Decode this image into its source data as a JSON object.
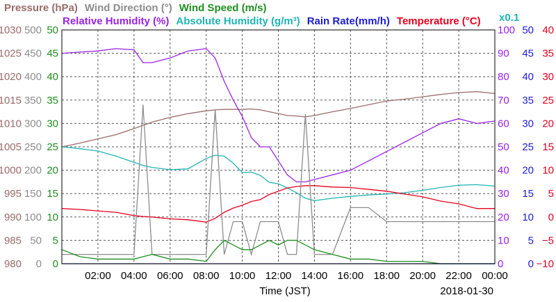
{
  "chart_data": {
    "type": "line",
    "date": "2018-01-30",
    "xlabel": "Time (JST)",
    "x_ticks": [
      "02:00",
      "04:00",
      "06:00",
      "08:00",
      "10:00",
      "12:00",
      "14:00",
      "16:00",
      "18:00",
      "20:00",
      "22:00",
      "00:00"
    ],
    "grid": true,
    "legend": [
      {
        "text": "Pressure (hPa)",
        "color": "#9b6b6b"
      },
      {
        "text": "Wind Direction (°)",
        "color": "#8c8c8c"
      },
      {
        "text": "Wind Speed (m/s)",
        "color": "#1f8f1f"
      },
      {
        "text": "Relative Humidity (%)",
        "color": "#9a22e6"
      },
      {
        "text": "Absolute Humidity (g/m³)",
        "color": "#1fb5b5"
      },
      {
        "text": "Rain Rate(mm/h)",
        "color": "#1c1cd6"
      },
      {
        "text": "Temperature (°C)",
        "color": "#e6001e"
      },
      {
        "text": "x0.1",
        "color": "#1fb5b5"
      }
    ],
    "axes": {
      "pressure": {
        "ticks": [
          "980",
          "985",
          "990",
          "995",
          "1000",
          "1005",
          "1010",
          "1015",
          "1020",
          "1025",
          "1030"
        ],
        "color": "#9b6b6b",
        "ylim": [
          980,
          1030
        ]
      },
      "wind_direction": {
        "ticks": [
          "0",
          "50",
          "100",
          "150",
          "200",
          "250",
          "300",
          "350",
          "400",
          "450",
          "500"
        ],
        "color": "#8c8c8c",
        "ylim": [
          0,
          500
        ]
      },
      "wind_speed": {
        "ticks": [
          "0",
          "5",
          "10",
          "15",
          "20",
          "25",
          "30",
          "35",
          "40",
          "45",
          "50"
        ],
        "color": "#1f8f1f",
        "ylim": [
          0,
          50
        ]
      },
      "relative_humidity": {
        "ticks": [
          "0",
          "10",
          "20",
          "30",
          "40",
          "50",
          "60",
          "70",
          "80",
          "90",
          "100"
        ],
        "color": "#9a22e6",
        "ylim": [
          0,
          100
        ]
      },
      "rain_rate": {
        "ticks": [
          "0",
          "5",
          "10",
          "15",
          "20",
          "25",
          "30",
          "35",
          "40",
          "45",
          "50"
        ],
        "color": "#1c1cd6",
        "ylim": [
          0,
          50
        ]
      },
      "temperature": {
        "ticks": [
          "−10",
          "−5",
          "0",
          "5",
          "10",
          "15",
          "20",
          "25",
          "30",
          "35",
          "40"
        ],
        "color": "#e6001e",
        "ylim": [
          -10,
          40
        ]
      }
    },
    "x_hours": [
      0,
      1,
      2,
      3,
      4,
      4.5,
      5,
      6,
      7,
      8,
      8.5,
      9,
      9.5,
      10,
      10.5,
      11,
      11.5,
      12,
      12.5,
      13,
      13.5,
      14,
      15,
      16,
      17,
      18,
      19,
      20,
      21,
      22,
      23,
      24
    ],
    "series": [
      {
        "name": "Pressure (hPa)",
        "axis": "pressure",
        "color": "#9b6b6b",
        "values": [
          1005.0,
          1005.8,
          1006.7,
          1007.6,
          1008.9,
          1009.6,
          1010.3,
          1011.3,
          1012.1,
          1012.7,
          1012.9,
          1013.0,
          1013.0,
          1013.0,
          1013.1,
          1012.9,
          1012.5,
          1012.1,
          1011.7,
          1011.6,
          1011.4,
          1011.7,
          1012.5,
          1013.2,
          1014.0,
          1014.8,
          1015.2,
          1015.7,
          1016.2,
          1016.6,
          1016.8,
          1016.4
        ]
      },
      {
        "name": "Relative Humidity (%)",
        "axis": "relative_humidity",
        "color": "#9a22e6",
        "values": [
          90,
          90.5,
          91,
          92,
          91.5,
          86,
          86,
          88,
          91,
          92,
          88,
          78,
          70,
          63,
          54,
          50,
          50,
          44,
          38,
          35,
          35,
          36,
          38,
          40,
          44,
          48,
          52,
          56,
          60,
          62,
          60,
          61
        ]
      },
      {
        "name": "Absolute Humidity (g/m³)",
        "axis": "wind_speed",
        "color": "#1fb5b5",
        "values": [
          25.0,
          24.6,
          24.1,
          23.0,
          21.7,
          21.0,
          20.6,
          20.1,
          20.3,
          22.5,
          23.2,
          23.0,
          21.5,
          19.5,
          19.6,
          18.9,
          17.4,
          17.1,
          16.2,
          15.2,
          14.0,
          13.5,
          14.0,
          14.4,
          14.7,
          14.9,
          15.2,
          15.7,
          16.3,
          16.8,
          16.9,
          16.6
        ]
      },
      {
        "name": "Temperature (°C)",
        "axis": "temperature",
        "color": "#e6001e",
        "values": [
          1.8,
          1.6,
          1.3,
          1.0,
          0.3,
          0.1,
          0.0,
          -0.4,
          -0.6,
          -1.1,
          -0.3,
          1.0,
          1.9,
          2.5,
          3.3,
          3.7,
          4.8,
          5.5,
          6.2,
          6.5,
          6.7,
          6.7,
          6.4,
          6.3,
          5.9,
          5.5,
          4.9,
          4.3,
          3.4,
          2.8,
          1.8,
          1.8
        ]
      },
      {
        "name": "Wind Direction (°)",
        "axis": "wind_direction",
        "color": "#8c8c8c",
        "values": [
          20,
          20,
          20,
          20,
          20,
          340,
          20,
          20,
          20,
          20,
          330,
          20,
          90,
          90,
          20,
          90,
          90,
          90,
          20,
          20,
          320,
          20,
          20,
          120,
          120,
          90,
          90,
          90,
          90,
          90,
          90,
          90
        ]
      },
      {
        "name": "Wind Speed (m/s)",
        "axis": "wind_speed",
        "color": "#1f8f1f",
        "values": [
          3,
          1.5,
          1,
          1,
          1,
          1.5,
          2,
          1,
          1,
          0.5,
          3,
          5,
          4,
          3,
          3,
          4,
          5,
          4,
          5,
          5,
          4,
          3,
          2,
          1,
          1,
          0.5,
          0.5,
          0.5,
          0,
          0,
          0,
          0
        ]
      },
      {
        "name": "Rain Rate(mm/h)",
        "axis": "rain_rate",
        "color": "#1c1cd6",
        "values": [
          0,
          0,
          0,
          0,
          0,
          0,
          0,
          0,
          0,
          0,
          0,
          0,
          0,
          0,
          0,
          0,
          0,
          0,
          0,
          0,
          0,
          0,
          0,
          0,
          0,
          0,
          0,
          0,
          0,
          0,
          0,
          0
        ]
      }
    ]
  }
}
